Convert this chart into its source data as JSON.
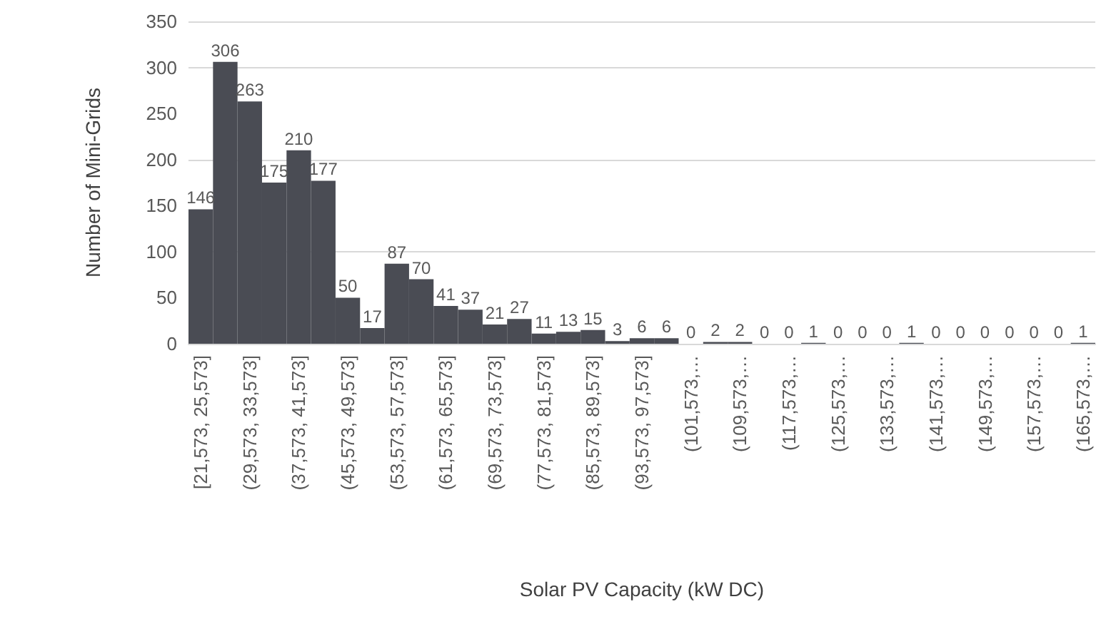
{
  "chart_data": {
    "type": "bar",
    "xlabel": "Solar PV Capacity (kW DC)",
    "ylabel": "Number of Mini-Grids",
    "categories": [
      "[21,573, 25,573]",
      null,
      "(29,573, 33,573]",
      null,
      "(37,573, 41,573]",
      null,
      "(45,573, 49,573]",
      null,
      "(53,573, 57,573]",
      null,
      "(61,573, 65,573]",
      null,
      "(69,573, 73,573]",
      null,
      "(77,573, 81,573]",
      null,
      "(85,573, 89,573]",
      null,
      "(93,573, 97,573]",
      null,
      "(101,573,…",
      null,
      "(109,573,…",
      null,
      "(117,573,…",
      null,
      "(125,573,…",
      null,
      "(133,573,…",
      null,
      "(141,573,…",
      null,
      "(149,573,…",
      null,
      "(157,573,…",
      null,
      "(165,573,…"
    ],
    "values": [
      146,
      306,
      263,
      175,
      210,
      177,
      50,
      17,
      87,
      70,
      41,
      37,
      21,
      27,
      11,
      13,
      15,
      3,
      6,
      6,
      0,
      2,
      2,
      0,
      0,
      1,
      0,
      0,
      0,
      1,
      0,
      0,
      0,
      0,
      0,
      0,
      1
    ],
    "color": "#4a4c54",
    "ylim": [
      0,
      350
    ],
    "yticks": [
      0,
      50,
      100,
      150,
      200,
      250,
      300,
      350
    ],
    "grid": "y",
    "data_labels": true
  }
}
